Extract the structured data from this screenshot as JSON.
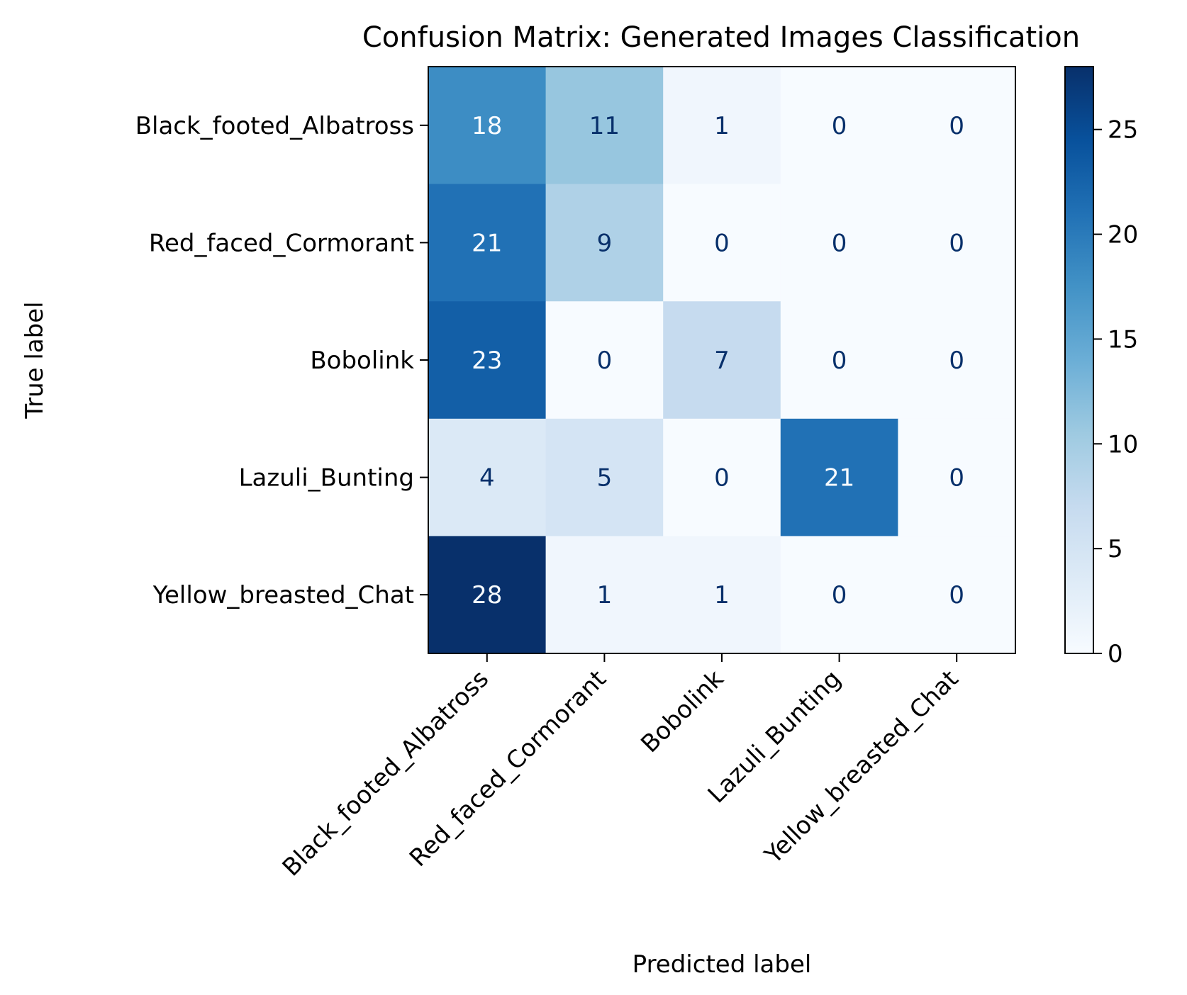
{
  "chart_data": {
    "type": "heatmap",
    "title": "Confusion Matrix: Generated Images Classification",
    "xlabel": "Predicted label",
    "ylabel": "True label",
    "x_categories": [
      "Black_footed_Albatross",
      "Red_faced_Cormorant",
      "Bobolink",
      "Lazuli_Bunting",
      "Yellow_breasted_Chat"
    ],
    "y_categories": [
      "Black_footed_Albatross",
      "Red_faced_Cormorant",
      "Bobolink",
      "Lazuli_Bunting",
      "Yellow_breasted_Chat"
    ],
    "matrix": [
      [
        18,
        11,
        1,
        0,
        0
      ],
      [
        21,
        9,
        0,
        0,
        0
      ],
      [
        23,
        0,
        7,
        0,
        0
      ],
      [
        4,
        5,
        0,
        21,
        0
      ],
      [
        28,
        1,
        1,
        0,
        0
      ]
    ],
    "colormap": "Blues",
    "colorbar": {
      "range": [
        0,
        28
      ],
      "ticks": [
        0,
        5,
        10,
        15,
        20,
        25
      ]
    },
    "grid": false,
    "x_tick_rotation_deg": 45
  }
}
